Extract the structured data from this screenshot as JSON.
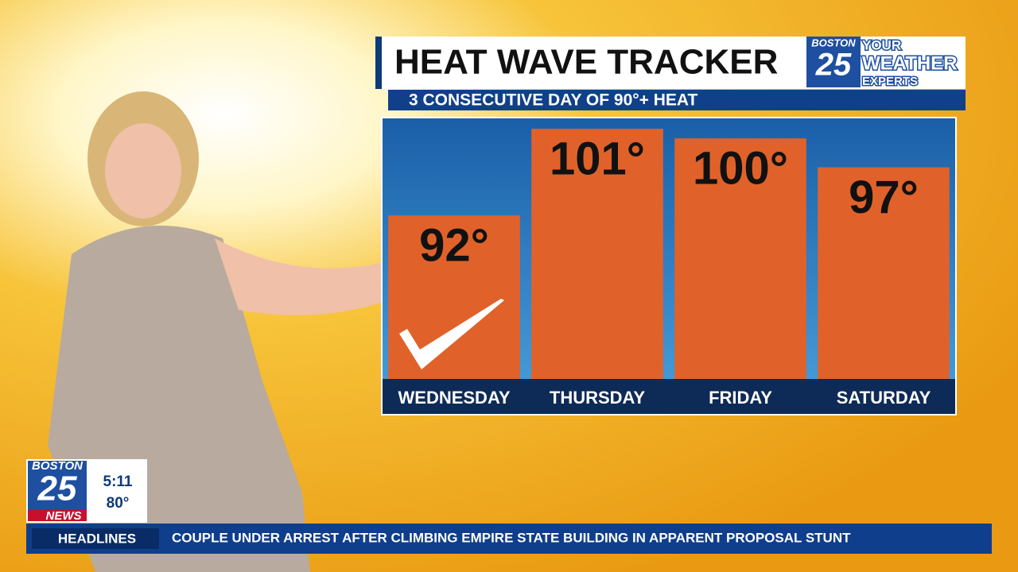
{
  "chart_data": {
    "type": "bar",
    "title": "HEAT WAVE TRACKER",
    "subtitle": "3 CONSECUTIVE DAY OF 90°+ HEAT",
    "categories": [
      "WEDNESDAY",
      "THURSDAY",
      "FRIDAY",
      "SATURDAY"
    ],
    "values": [
      92,
      101,
      100,
      97
    ],
    "value_labels": [
      "92°",
      "101°",
      "100°",
      "97°"
    ],
    "color": "#e0622a",
    "ylim": [
      75,
      102
    ]
  },
  "broadcast": {
    "logo": {
      "station": "BOSTON",
      "channel": "25",
      "line1": "YOUR",
      "line2": "WEATHER",
      "line3": "EXPERTS"
    },
    "bug": {
      "station": "BOSTON",
      "channel": "25",
      "brand": "NEWS",
      "time": "5:11",
      "temperature": "80°"
    },
    "ticker": {
      "label": "HEADLINES",
      "headline": "COUPLE UNDER ARREST AFTER CLIMBING EMPIRE STATE BUILDING IN APPARENT PROPOSAL STUNT"
    }
  }
}
